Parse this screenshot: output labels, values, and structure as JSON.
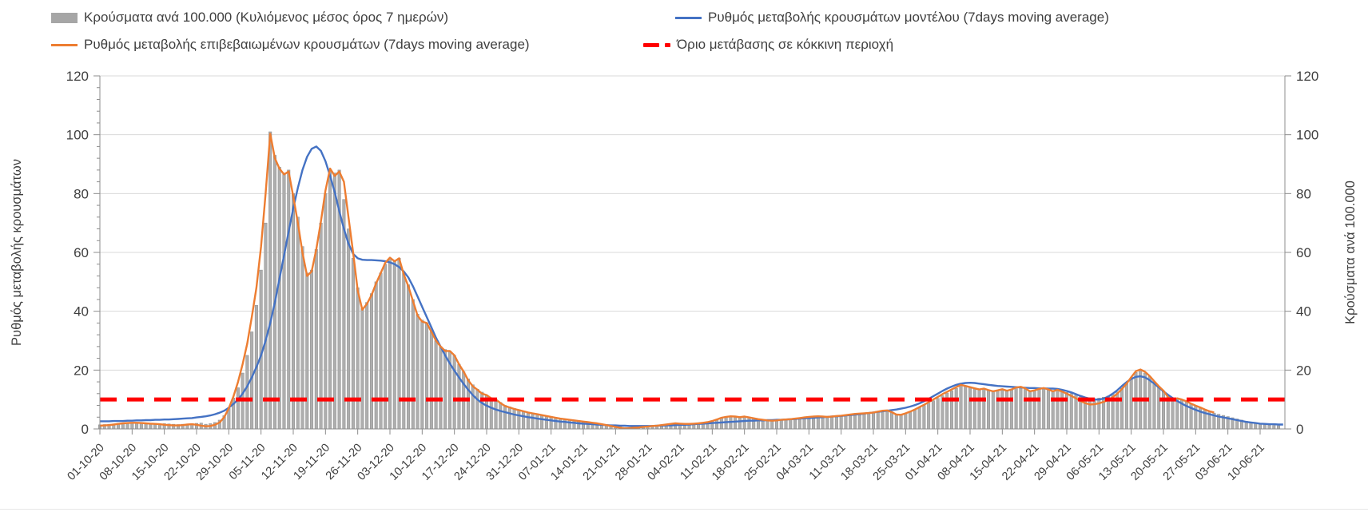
{
  "legend": {
    "items": [
      {
        "label": "Κρούσματα ανά 100.000 (Κυλιόμενος μέσος όρος 7 ημερών)",
        "swatch": "bar",
        "color": "#a6a6a6"
      },
      {
        "label": "Ρυθμός μεταβολής κρουσμάτων μοντέλου (7days moving average)",
        "swatch": "line",
        "color": "#4472c4"
      },
      {
        "label": "Ρυθμός μεταβολής επιβεβαιωμένων κρουσμάτων (7days moving average)",
        "swatch": "line",
        "color": "#ed7d31"
      },
      {
        "label": "Όριο μετάβασης σε κόκκινη περιοχή",
        "swatch": "dash",
        "color": "#ff0000"
      }
    ]
  },
  "colors": {
    "bars_fill": "#aeaeae",
    "bars_stroke": "#8c8c8c",
    "model_line": "#4472c4",
    "confirmed_line": "#ed7d31",
    "threshold": "#ff0000",
    "gridline": "#d9d9d9",
    "axis": "#8c8c8c",
    "text": "#3f3f3f"
  },
  "chart_data": {
    "type": "bar",
    "title": "",
    "left_axis_title": "Ρυθμός μεταβολής κρουσμάτων",
    "right_axis_title": "Κρούσματα ανά 100.000",
    "ylim": [
      0,
      120
    ],
    "y_ticks": [
      0,
      20,
      40,
      60,
      80,
      100,
      120
    ],
    "y_minor_step": 4,
    "grid": true,
    "legend_position": "top",
    "threshold_value": 10,
    "x_tick_labels": [
      "01-10-20",
      "08-10-20",
      "15-10-20",
      "22-10-20",
      "29-10-20",
      "05-11-20",
      "12-11-20",
      "19-11-20",
      "26-11-20",
      "03-12-20",
      "10-12-20",
      "17-12-20",
      "24-12-20",
      "31-12-20",
      "07-01-21",
      "14-01-21",
      "21-01-21",
      "28-01-21",
      "04-02-21",
      "11-02-21",
      "18-02-21",
      "25-02-21",
      "04-03-21",
      "11-03-21",
      "18-03-21",
      "25-03-21",
      "01-04-21",
      "08-04-21",
      "15-04-21",
      "22-04-21",
      "29-04-21",
      "06-05-21",
      "13-05-21",
      "20-05-21",
      "27-05-21",
      "03-06-21",
      "10-06-21"
    ],
    "days_per_tick": 7,
    "series": [
      {
        "name": "Κρούσματα ανά 100.000 (Κυλιόμενος μέσος όρος 7 ημερών)",
        "type": "bar",
        "axis": "right",
        "values": [
          1.4,
          1.5,
          1.6,
          1.7,
          1.9,
          2.0,
          2.1,
          2.2,
          2.2,
          2.1,
          2.0,
          1.9,
          1.8,
          1.8,
          1.8,
          1.7,
          1.6,
          1.5,
          1.6,
          1.7,
          1.8,
          1.9,
          2.0,
          1.6,
          1.8,
          2.2,
          3.0,
          4.5,
          7.0,
          10.5,
          14,
          19,
          25,
          33,
          42,
          54,
          70,
          101,
          93,
          89,
          87,
          88,
          80,
          72,
          62,
          53,
          54,
          61,
          70,
          80,
          88,
          87,
          88,
          78,
          68,
          58,
          48,
          41,
          43,
          46,
          50,
          53,
          56,
          58,
          57,
          58,
          53,
          49,
          44,
          39,
          37,
          36,
          33,
          30,
          28,
          27,
          26.5,
          25,
          22,
          19.5,
          17,
          15,
          13.5,
          12.5,
          11.5,
          10.5,
          10,
          9,
          8,
          7.5,
          7,
          6.5,
          6,
          5.6,
          5.4,
          5.1,
          4.8,
          4.5,
          4.2,
          3.9,
          3.6,
          3.4,
          3.2,
          3.0,
          2.8,
          2.6,
          2.4,
          2.2,
          2.0,
          1.7,
          1.4,
          1.1,
          0.9,
          0.7,
          0.5,
          0.4,
          0.5,
          0.6,
          0.7,
          0.8,
          0.9,
          1.0,
          1.2,
          1.4,
          1.6,
          1.9,
          1.8,
          1.7,
          1.7,
          1.7,
          1.8,
          2.0,
          2.2,
          2.6,
          3.0,
          3.6,
          4.0,
          4.3,
          4.2,
          3.9,
          4.1,
          3.8,
          3.5,
          3.3,
          3.1,
          3.0,
          2.9,
          2.9,
          3.0,
          3.1,
          3.2,
          3.4,
          3.6,
          3.8,
          4.0,
          4.1,
          4.2,
          4.1,
          4.0,
          4.1,
          4.3,
          4.4,
          4.6,
          4.8,
          5.0,
          5.1,
          5.2,
          5.3,
          5.5,
          5.7,
          6.0,
          6.3,
          5.8,
          5.0,
          4.9,
          5.2,
          5.8,
          6.5,
          7.2,
          8.0,
          8.8,
          9.6,
          10.4,
          11.3,
          12.2,
          13.0,
          13.8,
          14.8,
          14.5,
          14.2,
          13.8,
          13.4,
          13.6,
          13.2,
          12.8,
          13.0,
          13.4,
          13.0,
          13.3,
          14.0,
          14.3,
          13.8,
          12.9,
          13.2,
          13.6,
          13.8,
          13.4,
          12.9,
          13.3,
          12.8,
          12.4,
          12.0,
          11.5,
          11.0,
          10.6,
          10.4,
          10.3,
          10.5,
          10.8,
          11.2,
          11.8,
          12.6,
          13.8,
          15.4,
          17.2,
          19.2,
          19.8,
          19.0,
          17.8,
          16.0,
          14.4,
          12.9,
          11.2,
          10.2,
          10.4,
          9.9,
          9.3,
          8.5,
          7.8,
          7.1,
          6.5,
          5.9,
          5.4,
          5.0,
          4.6,
          4.2,
          3.8,
          3.4,
          3.0,
          2.6,
          2.2,
          1.9,
          1.6,
          1.4,
          1.3,
          1.2,
          1.1
        ]
      },
      {
        "name": "Ρυθμός μεταβολής κρουσμάτων μοντέλου (7days moving average)",
        "type": "line",
        "axis": "left",
        "values": [
          2.6,
          2.6,
          2.6,
          2.7,
          2.7,
          2.7,
          2.8,
          2.8,
          2.9,
          2.9,
          3.0,
          3.0,
          3.1,
          3.1,
          3.2,
          3.2,
          3.3,
          3.4,
          3.5,
          3.6,
          3.7,
          3.9,
          4.1,
          4.3,
          4.6,
          5.0,
          5.5,
          6.2,
          7.2,
          8.5,
          10,
          12,
          14.5,
          17.5,
          21,
          25,
          30,
          36,
          43,
          51,
          59,
          67,
          75,
          82,
          88,
          92.5,
          95.2,
          96,
          94.5,
          91,
          86,
          80.5,
          74,
          68,
          63,
          59.5,
          58,
          57.5,
          57.4,
          57.4,
          57.3,
          57.2,
          57.0,
          56.6,
          56.0,
          55.0,
          53.5,
          51.5,
          48.5,
          45,
          41.5,
          38,
          34.5,
          31,
          28,
          25,
          22.3,
          19.8,
          17.5,
          15.3,
          13.3,
          11.5,
          10,
          8.8,
          7.9,
          7.2,
          6.6,
          6.1,
          5.7,
          5.3,
          4.9,
          4.6,
          4.3,
          4.0,
          3.8,
          3.5,
          3.3,
          3.1,
          2.9,
          2.7,
          2.5,
          2.4,
          2.2,
          2.1,
          1.9,
          1.8,
          1.7,
          1.6,
          1.5,
          1.4,
          1.3,
          1.2,
          1.2,
          1.1,
          1.1,
          1.0,
          1.0,
          1.0,
          1.0,
          1.0,
          1.0,
          1.1,
          1.1,
          1.2,
          1.2,
          1.3,
          1.4,
          1.4,
          1.5,
          1.6,
          1.7,
          1.8,
          1.9,
          2.0,
          2.1,
          2.2,
          2.3,
          2.4,
          2.5,
          2.6,
          2.7,
          2.8,
          2.8,
          2.9,
          2.9,
          3.0,
          3.0,
          3.1,
          3.1,
          3.2,
          3.3,
          3.4,
          3.5,
          3.6,
          3.7,
          3.8,
          3.9,
          4.0,
          4.1,
          4.2,
          4.3,
          4.4,
          4.6,
          4.7,
          4.9,
          5.0,
          5.2,
          5.4,
          5.6,
          5.8,
          6.0,
          6.2,
          6.4,
          6.6,
          6.9,
          7.2,
          7.6,
          8.1,
          8.7,
          9.4,
          10.2,
          11.1,
          12.0,
          12.9,
          13.7,
          14.4,
          15.0,
          15.4,
          15.6,
          15.7,
          15.6,
          15.4,
          15.2,
          15.0,
          14.8,
          14.6,
          14.5,
          14.4,
          14.3,
          14.2,
          14.1,
          14.0,
          13.9,
          13.9,
          13.8,
          13.8,
          13.7,
          13.7,
          13.6,
          13.3,
          12.9,
          12.4,
          11.8,
          11.2,
          10.7,
          10.3,
          10.0,
          10.0,
          10.3,
          11.0,
          12.0,
          13.2,
          14.6,
          15.9,
          17.0,
          17.7,
          17.9,
          17.5,
          16.6,
          15.4,
          14.1,
          12.8,
          11.6,
          10.5,
          9.5,
          8.6,
          7.8,
          7.1,
          6.5,
          5.9,
          5.4,
          5.0,
          4.6,
          4.2,
          3.9,
          3.6,
          3.3,
          3.0,
          2.7,
          2.4,
          2.2,
          2.0,
          1.8,
          1.7,
          1.6,
          1.6,
          1.5,
          1.5
        ]
      },
      {
        "name": "Ρυθμός μεταβολής επιβεβαιωμένων κρουσμάτων (7days moving average)",
        "type": "line",
        "axis": "left",
        "values": [
          1.1,
          1.2,
          1.3,
          1.5,
          1.7,
          1.9,
          2.0,
          2.1,
          2.1,
          2.0,
          1.9,
          1.8,
          1.7,
          1.6,
          1.4,
          1.3,
          1.2,
          1.2,
          1.3,
          1.5,
          1.6,
          1.4,
          1.1,
          0.9,
          1.0,
          1.4,
          2.2,
          4.0,
          7.0,
          11.0,
          16,
          22,
          29,
          38,
          48,
          62,
          80,
          100.3,
          92,
          88.5,
          86.5,
          87.5,
          79,
          70,
          60,
          52,
          53.5,
          61,
          70.5,
          81,
          88.5,
          86,
          87.5,
          84,
          72,
          60,
          47,
          40.5,
          42.5,
          45.5,
          49.5,
          53,
          56.5,
          58.2,
          57,
          58,
          52.5,
          48.5,
          43.5,
          38.5,
          36.5,
          36,
          33,
          30,
          28,
          26.5,
          26.5,
          25,
          22,
          19.5,
          16.5,
          14.5,
          13.3,
          12,
          11.5,
          10.4,
          10,
          8.8,
          7.8,
          7.3,
          6.8,
          6.4,
          6.0,
          5.6,
          5.3,
          5.0,
          4.7,
          4.4,
          4.1,
          3.8,
          3.5,
          3.3,
          3.1,
          2.9,
          2.7,
          2.5,
          2.3,
          2.1,
          1.9,
          1.6,
          1.3,
          1.0,
          0.7,
          0.4,
          0.2,
          0.3,
          0.4,
          0.5,
          0.7,
          0.8,
          1.0,
          1.1,
          1.3,
          1.5,
          1.7,
          1.9,
          1.8,
          1.7,
          1.7,
          1.8,
          1.9,
          2.1,
          2.3,
          2.7,
          3.2,
          3.8,
          4.1,
          4.3,
          4.2,
          4.0,
          4.2,
          3.9,
          3.6,
          3.3,
          3.1,
          2.9,
          2.8,
          2.9,
          3.1,
          3.2,
          3.3,
          3.5,
          3.7,
          3.9,
          4.1,
          4.2,
          4.3,
          4.2,
          4.1,
          4.2,
          4.4,
          4.5,
          4.7,
          4.9,
          5.1,
          5.2,
          5.3,
          5.4,
          5.6,
          5.9,
          6.2,
          6.3,
          5.7,
          4.9,
          4.8,
          5.3,
          5.9,
          6.6,
          7.4,
          8.2,
          9.1,
          10.0,
          10.9,
          11.8,
          12.6,
          13.4,
          14.2,
          15.0,
          14.6,
          14.2,
          13.8,
          13.4,
          13.7,
          13.2,
          12.8,
          13.1,
          13.5,
          13.0,
          13.4,
          14.1,
          14.3,
          13.8,
          12.8,
          13.1,
          13.6,
          13.9,
          13.4,
          12.8,
          13.3,
          12.7,
          12.0,
          11.2,
          10.4,
          9.5,
          8.8,
          8.3,
          8.4,
          8.7,
          9.2,
          9.8,
          10.8,
          12.0,
          13.6,
          15.4,
          17.6,
          19.6,
          20.2,
          19.4,
          18.0,
          16.2,
          14.5,
          13.0,
          10.8,
          9.9,
          10.4,
          10.0,
          9.4,
          8.6,
          7.9,
          7.3,
          6.6,
          6.0,
          5.6
        ]
      },
      {
        "name": "Όριο μετάβασης σε κόκκινη περιοχή",
        "type": "threshold",
        "axis": "left",
        "value": 10
      }
    ]
  }
}
